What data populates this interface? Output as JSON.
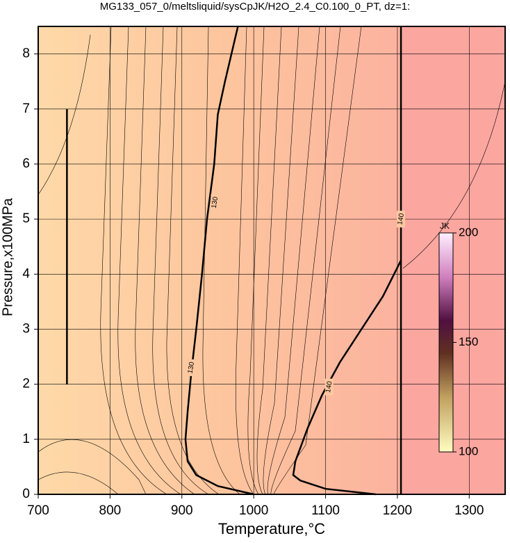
{
  "chart_data": {
    "type": "contour",
    "title": "MG133_057_0/meltsliquid/sysCpJK/H2O_2.4_C0.100_0_PT, dz=1:",
    "x_label": "Temperature,°C",
    "y_label": "Pressure,x100MPa",
    "xlim": [
      700,
      1350
    ],
    "ylim": [
      0,
      8.5
    ],
    "xticks": [
      700,
      800,
      900,
      1000,
      1100,
      1200,
      1300
    ],
    "yticks": [
      0,
      1,
      2,
      3,
      4,
      5,
      6,
      7,
      8
    ],
    "grid": true,
    "contours": [
      {
        "level": 130,
        "x": [
          978,
          960,
          950,
          945,
          935,
          928,
          920,
          913,
          908,
          905,
          908,
          920,
          950,
          1000
        ],
        "y": [
          8.5,
          7.5,
          6.9,
          6,
          5,
          4,
          3,
          2.2,
          1.5,
          1,
          0.6,
          0.35,
          0.15,
          0
        ],
        "label_at": [
          946,
          5.3,
          913,
          2.3
        ]
      },
      {
        "level": 140,
        "x": [
          1205,
          1205
        ],
        "y": [
          0,
          8.5
        ],
        "label_at": [
          1205,
          5.0
        ]
      },
      {
        "level": 140,
        "x": [
          1205,
          1180,
          1150,
          1120,
          1095,
          1075,
          1058,
          1055,
          1065,
          1100,
          1170
        ],
        "y": [
          4.25,
          3.6,
          3,
          2.4,
          1.8,
          1.2,
          0.6,
          0.35,
          0.25,
          0.1,
          0
        ],
        "label_at": [
          1105,
          1.95
        ]
      },
      {
        "x": [
          740,
          740
        ],
        "y": [
          2,
          7
        ]
      }
    ],
    "colorbar": {
      "label": "JK",
      "lim": [
        100,
        200
      ],
      "ticks": [
        100,
        150,
        200
      ]
    }
  }
}
